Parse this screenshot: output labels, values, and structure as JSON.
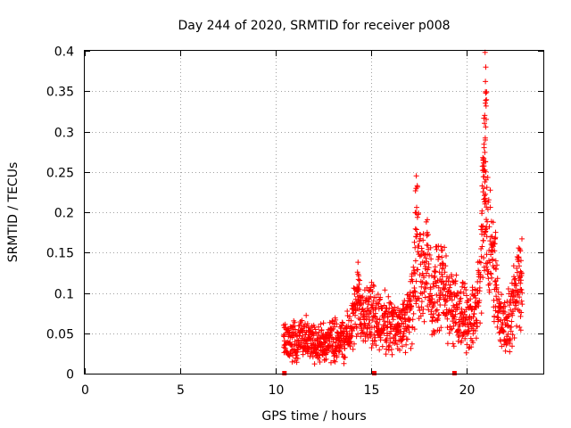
{
  "chart_data": {
    "type": "scatter",
    "title": "Day 244 of 2020, SRMTID for receiver p008",
    "xlabel": "GPS time / hours",
    "ylabel": "SRMTID / TECUs",
    "xlim": [
      0,
      24
    ],
    "ylim": [
      0,
      0.4
    ],
    "xticks": [
      0,
      5,
      10,
      15,
      20
    ],
    "yticks": [
      0,
      0.05,
      0.1,
      0.15,
      0.2,
      0.25,
      0.3,
      0.35,
      0.4
    ],
    "grid": true,
    "marker": "+",
    "color": "#ff0000",
    "series": [
      {
        "name": "SRMTID",
        "profile": [
          [
            10.4,
            0.035
          ],
          [
            11.0,
            0.04
          ],
          [
            11.6,
            0.042
          ],
          [
            12.2,
            0.038
          ],
          [
            12.8,
            0.04
          ],
          [
            13.2,
            0.045
          ],
          [
            13.6,
            0.04
          ],
          [
            14.0,
            0.06
          ],
          [
            14.2,
            0.08
          ],
          [
            14.4,
            0.085
          ],
          [
            14.8,
            0.075
          ],
          [
            15.2,
            0.07
          ],
          [
            15.6,
            0.065
          ],
          [
            16.0,
            0.06
          ],
          [
            16.4,
            0.055
          ],
          [
            16.8,
            0.06
          ],
          [
            17.2,
            0.09
          ],
          [
            17.4,
            0.16
          ],
          [
            17.6,
            0.11
          ],
          [
            17.9,
            0.13
          ],
          [
            18.2,
            0.09
          ],
          [
            18.6,
            0.12
          ],
          [
            19.0,
            0.09
          ],
          [
            19.4,
            0.075
          ],
          [
            19.8,
            0.075
          ],
          [
            20.2,
            0.07
          ],
          [
            20.5,
            0.07
          ],
          [
            20.7,
            0.12
          ],
          [
            20.9,
            0.23
          ],
          [
            21.1,
            0.16
          ],
          [
            21.4,
            0.13
          ],
          [
            21.7,
            0.07
          ],
          [
            22.0,
            0.06
          ],
          [
            22.3,
            0.07
          ],
          [
            22.6,
            0.11
          ],
          [
            22.9,
            0.11
          ]
        ],
        "peaks": [
          [
            17.35,
            0.245
          ],
          [
            20.95,
            0.398
          ],
          [
            20.97,
            0.362
          ],
          [
            20.93,
            0.32
          ],
          [
            20.9,
            0.28
          ],
          [
            20.85,
            0.265
          ],
          [
            21.0,
            0.24
          ],
          [
            14.3,
            0.138
          ],
          [
            21.5,
            0.175
          ],
          [
            22.8,
            0.152
          ]
        ],
        "zero_markers": [
          10.45,
          15.15,
          19.35
        ]
      }
    ]
  }
}
